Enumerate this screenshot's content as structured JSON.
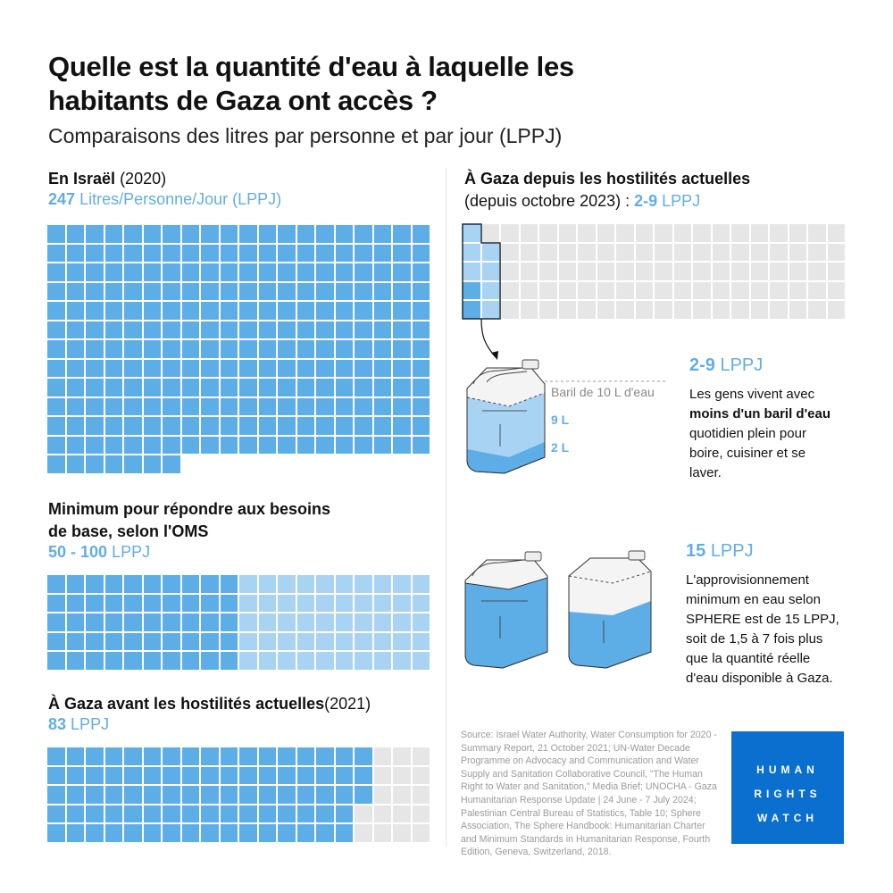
{
  "title_line1": "Quelle est la quantité d'eau à laquelle les",
  "title_line2": "habitants de Gaza ont accès ?",
  "subtitle": "Comparaisons des litres par personne et par jour (LPPJ)",
  "israel": {
    "heading": "En Israël",
    "year": "(2020)",
    "value": "247",
    "unit": "Litres/Personne/Jour (LPPJ)"
  },
  "who": {
    "heading_line1": "Minimum pour répondre aux besoins",
    "heading_line2": "de base, selon l'OMS",
    "value": "50 - 100",
    "unit": "LPPJ"
  },
  "gaza_before": {
    "heading": "À Gaza avant les hostilités actuelles",
    "year": "(2021)",
    "value": "83",
    "unit": "LPPJ"
  },
  "gaza_now": {
    "heading": "À Gaza depuis les hostilités actuelles",
    "period": "(depuis octobre 2023) : ",
    "value": "2-9",
    "unit": "LPPJ"
  },
  "barrel": {
    "label": "Baril de 10 L d'eau",
    "level_high": "9 L",
    "level_low": "2 L"
  },
  "note1": {
    "value": "2-9",
    "unit": "LPPJ",
    "text_a": "Les gens vivent avec ",
    "text_bold": "moins d'un baril d'eau",
    "text_b": " quotidien plein pour boire, cuisiner et se laver."
  },
  "note2": {
    "value": "15",
    "unit": "LPPJ",
    "text": "L'approvisionnement minimum en eau selon SPHERE est de 15 LPPJ, soit de 1,5 à 7 fois plus que la quantité réelle d'eau disponible à Gaza."
  },
  "source": "Source: Israel Water Authority, Water Consumption for 2020 - Summary Report, 21 October 2021; UN-Water Decade Programme on Advocacy and Communication and Water Supply and Sanitation Collaborative Council, “The Human Right to Water and Sanitation,” Media Brief; UNOCHA - Gaza Humanitarian Response Update | 24 June - 7 July 2024; Palestinian Central Bureau of Statistics, Table 10; Sphere Association, The Sphere Handbook: Humanitarian Charter and Minimum Standards in Humanitarian Response, Fourth Edition, Geneva, Switzerland, 2018.",
  "logo": {
    "line1": "HUMAN",
    "line2": "RIGHTS",
    "line3": "WATCH"
  },
  "colors": {
    "dark_blue": "#5dade6",
    "light_blue": "#a9d3f3",
    "gray": "#e6e6e6",
    "value_blue": "#62ade4",
    "logo_blue": "#0b6fd0"
  },
  "chart_data": [
    {
      "type": "waffle",
      "id": "israel",
      "unit": "LPPJ",
      "columns": 20,
      "total_cells": 247,
      "dark": 247,
      "light": 0
    },
    {
      "type": "waffle",
      "id": "who",
      "unit": "LPPJ",
      "columns": 20,
      "total_cells": 100,
      "dark": 50,
      "light": 50
    },
    {
      "type": "waffle",
      "id": "gaza_before",
      "unit": "LPPJ",
      "columns": 20,
      "total_cells": 100,
      "dark": 83,
      "light": 0
    },
    {
      "type": "waffle",
      "id": "gaza_now",
      "unit": "LPPJ",
      "columns": 20,
      "total_cells": 100,
      "dark": 2,
      "light": 7
    }
  ]
}
